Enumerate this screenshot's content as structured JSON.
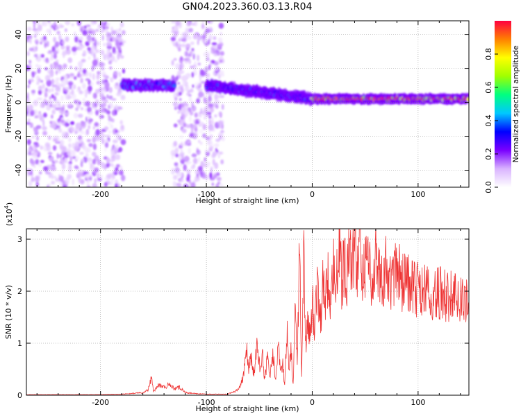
{
  "chart_title": "GN04.2023.360.03.13.R04",
  "chart_data": [
    {
      "type": "heatmap",
      "title": "GN04.2023.360.03.13.R04",
      "xlabel": "Height of straight line (km)",
      "ylabel": "Frequency (Hz)",
      "xlim": [
        -270,
        148
      ],
      "ylim": [
        -50,
        48
      ],
      "xticks": [
        "-200",
        "-100",
        "0",
        "100"
      ],
      "yticks": [
        "-40",
        "-20",
        "0",
        "20",
        "40"
      ],
      "xtick_values": [
        -200,
        -100,
        0,
        100
      ],
      "ytick_values": [
        -40,
        -20,
        0,
        20,
        40
      ],
      "colorbar": {
        "label": "Normalized spectral amplitude",
        "range": [
          0,
          1
        ],
        "ticks": [
          "0.0",
          "0.2",
          "0.4",
          "0.6",
          "0.8"
        ],
        "tick_values": [
          0.0,
          0.2,
          0.4,
          0.6,
          0.8
        ],
        "colormap": [
          "#ffffff",
          "#d9b3ff",
          "#7a00ff",
          "#0000ff",
          "#00c8ff",
          "#00ff80",
          "#a0ff00",
          "#ffff00",
          "#ff8000",
          "#ff0040"
        ]
      },
      "regions": [
        {
          "description": "broadband noise",
          "x_range": [
            -270,
            -178
          ],
          "freq_range": [
            -50,
            48
          ],
          "amplitude": 0.1
        },
        {
          "description": "broadband noise",
          "x_range": [
            -132,
            -84
          ],
          "freq_range": [
            -50,
            48
          ],
          "amplitude": 0.1
        },
        {
          "description": "narrow band",
          "x_range": [
            -180,
            -130
          ],
          "freq_center": 10,
          "amplitude": 0.35
        },
        {
          "description": "narrow band",
          "x_range": [
            -100,
            0
          ],
          "freq_center_start": 10,
          "freq_center_end": 2,
          "amplitude": 0.3
        },
        {
          "description": "narrow band",
          "x_range": [
            0,
            148
          ],
          "freq_center": 2,
          "amplitude": 0.85
        }
      ]
    },
    {
      "type": "line",
      "xlabel": "Height of straight line (km)",
      "ylabel": "SNR (10 * v/v)",
      "y_multiplier": "(x10",
      "y_multiplier_exp": "4",
      "y_multiplier_close": ")",
      "xlim": [
        -270,
        148
      ],
      "ylim": [
        0,
        3.2
      ],
      "xticks": [
        "-200",
        "-100",
        "0",
        "100"
      ],
      "yticks": [
        "0",
        "1",
        "2",
        "3"
      ],
      "xtick_values": [
        -200,
        -100,
        0,
        100
      ],
      "ytick_values": [
        0,
        1,
        2,
        3
      ],
      "color": "#ee3333",
      "series": [
        {
          "x": [
            -270,
            -250,
            -200,
            -180,
            -160,
            -155,
            -152,
            -150,
            -145,
            -140,
            -135,
            -130,
            -125,
            -120,
            -110,
            -100,
            -90,
            -80,
            -70,
            -65,
            -62,
            -60,
            -58,
            -55,
            -52,
            -50,
            -47,
            -45,
            -42,
            -40,
            -37,
            -35,
            -32,
            -30,
            -28,
            -26,
            -24,
            -22,
            -20,
            -18,
            -16,
            -14,
            -12,
            -10,
            -8,
            -6,
            -4,
            -2,
            0,
            2,
            5,
            8,
            10,
            12,
            15,
            18,
            20,
            22,
            25,
            28,
            30,
            32,
            35,
            38,
            40,
            42,
            45,
            48,
            50,
            55,
            60,
            65,
            70,
            75,
            80,
            85,
            90,
            95,
            100,
            110,
            120,
            130,
            140,
            148
          ],
          "y": [
            0.01,
            0.01,
            0.01,
            0.02,
            0.05,
            0.1,
            0.33,
            0.08,
            0.2,
            0.15,
            0.2,
            0.12,
            0.15,
            0.05,
            0.03,
            0.02,
            0.02,
            0.02,
            0.1,
            0.35,
            0.85,
            0.5,
            0.75,
            0.4,
            0.95,
            0.55,
            0.8,
            0.35,
            0.7,
            0.3,
            0.85,
            0.25,
            0.9,
            0.45,
            0.6,
            0.2,
            1.3,
            0.5,
            0.9,
            0.2,
            1.6,
            0.6,
            3.0,
            0.4,
            2.7,
            1.0,
            1.5,
            1.2,
            1.8,
            1.4,
            2.2,
            1.5,
            2.1,
            1.7,
            2.4,
            1.8,
            2.7,
            2.0,
            2.9,
            2.1,
            2.6,
            2.2,
            2.8,
            2.3,
            3.2,
            2.2,
            2.9,
            2.2,
            2.6,
            2.3,
            2.7,
            2.2,
            2.5,
            2.1,
            2.4,
            2.2,
            2.2,
            2.1,
            2.0,
            2.0,
            1.95,
            1.9,
            1.8,
            1.75
          ]
        }
      ]
    }
  ]
}
